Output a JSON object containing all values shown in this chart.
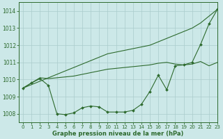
{
  "x": [
    0,
    1,
    2,
    3,
    4,
    5,
    6,
    7,
    8,
    9,
    10,
    11,
    12,
    13,
    14,
    15,
    16,
    17,
    18,
    19,
    20,
    21,
    22,
    23
  ],
  "line_straight": [
    1009.5,
    1009.7,
    1009.9,
    1010.1,
    1010.3,
    1010.5,
    1010.7,
    1010.9,
    1011.1,
    1011.3,
    1011.5,
    1011.6,
    1011.7,
    1011.8,
    1011.9,
    1012.0,
    1012.2,
    1012.4,
    1012.6,
    1012.8,
    1013.0,
    1013.3,
    1013.7,
    1014.1
  ],
  "line_smooth": [
    1009.5,
    1009.8,
    1010.1,
    1010.05,
    1010.1,
    1010.15,
    1010.2,
    1010.3,
    1010.4,
    1010.5,
    1010.6,
    1010.65,
    1010.7,
    1010.75,
    1010.8,
    1010.85,
    1010.95,
    1011.0,
    1010.9,
    1010.85,
    1010.9,
    1011.05,
    1010.8,
    1011.0
  ],
  "line_markers": [
    1009.5,
    1009.8,
    1010.05,
    1009.65,
    1008.0,
    1007.95,
    1008.05,
    1008.35,
    1008.45,
    1008.4,
    1008.1,
    1008.1,
    1008.1,
    1008.2,
    1008.55,
    1009.3,
    1010.25,
    1009.4,
    1010.8,
    1010.85,
    1011.0,
    1012.05,
    1013.25,
    1014.1
  ],
  "line_color": "#2d6a2d",
  "bg_color": "#cce8e8",
  "grid_color": "#aacccc",
  "xlabel": "Graphe pression niveau de la mer (hPa)",
  "ylim": [
    1007.5,
    1014.5
  ],
  "xlim": [
    -0.5,
    23
  ],
  "yticks": [
    1008,
    1009,
    1010,
    1011,
    1012,
    1013,
    1014
  ],
  "xticks": [
    0,
    1,
    2,
    3,
    4,
    5,
    6,
    7,
    8,
    9,
    10,
    11,
    12,
    13,
    14,
    15,
    16,
    17,
    18,
    19,
    20,
    21,
    22,
    23
  ]
}
